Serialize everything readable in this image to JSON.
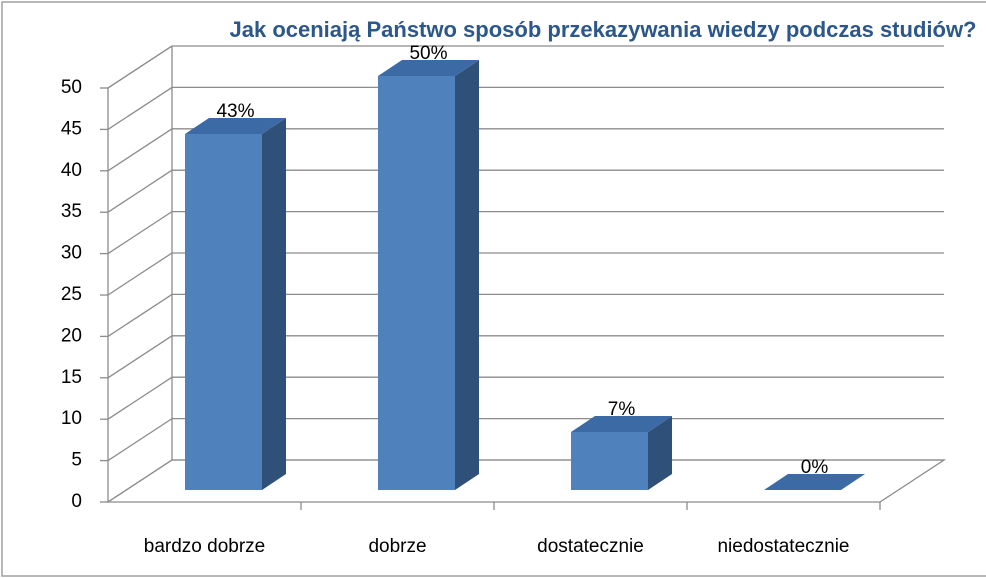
{
  "chart_data": {
    "type": "bar",
    "title": "Jak oceniają Państwo sposób przekazywania wiedzy podczas studiów?",
    "categories": [
      "bardzo dobrze",
      "dobrze",
      "dostatecznie",
      "niedostatecznie"
    ],
    "values": [
      43,
      50,
      7,
      0
    ],
    "value_labels": [
      "43%",
      "50%",
      "7%",
      "0%"
    ],
    "color": "#4f81bd",
    "ylim": [
      0,
      50
    ],
    "yticks": [
      0,
      5,
      10,
      15,
      20,
      25,
      30,
      35,
      40,
      45,
      50
    ],
    "grid": true
  }
}
